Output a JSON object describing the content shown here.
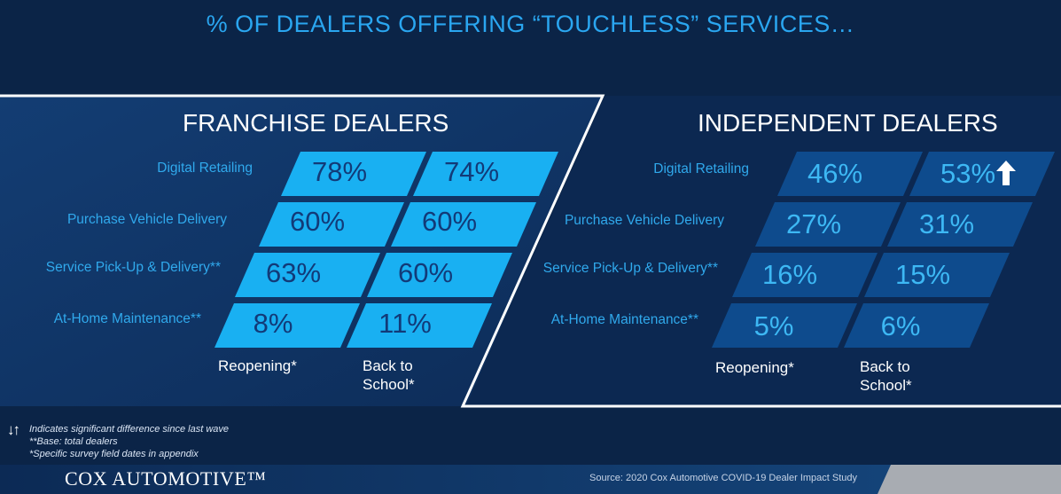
{
  "title": "% OF DEALERS OFFERING “TOUCHLESS” SERVICES…",
  "chart_data": [
    {
      "type": "table",
      "title": "FRANCHISE DEALERS",
      "columns": [
        "Reopening*",
        "Back to\nSchool*"
      ],
      "rows": [
        "Digital Retailing",
        "Purchase Vehicle Delivery",
        "Service Pick-Up & Delivery**",
        "At-Home Maintenance**"
      ],
      "values_display": [
        [
          "78%",
          "74%"
        ],
        [
          "60%",
          "60%"
        ],
        [
          "63%",
          "60%"
        ],
        [
          "8%",
          "11%"
        ]
      ],
      "values": [
        [
          78,
          74
        ],
        [
          60,
          60
        ],
        [
          63,
          60
        ],
        [
          8,
          11
        ]
      ]
    },
    {
      "type": "table",
      "title": "INDEPENDENT DEALERS",
      "columns": [
        "Reopening*",
        "Back to\nSchool*"
      ],
      "rows": [
        "Digital Retailing",
        "Purchase Vehicle Delivery",
        "Service Pick-Up & Delivery**",
        "At-Home Maintenance**"
      ],
      "values_display": [
        [
          "46%",
          "53%"
        ],
        [
          "27%",
          "31%"
        ],
        [
          "16%",
          "15%"
        ],
        [
          "5%",
          "6%"
        ]
      ],
      "values": [
        [
          46,
          53
        ],
        [
          27,
          31
        ],
        [
          16,
          15
        ],
        [
          5,
          6
        ]
      ],
      "significant_increase": [
        [
          false,
          true
        ],
        [
          false,
          false
        ],
        [
          false,
          false
        ],
        [
          false,
          false
        ]
      ]
    }
  ],
  "footnotes": {
    "arrows_symbol": "↓↑",
    "line1": "Indicates significant difference since last wave",
    "line2": "**Base: total dealers",
    "line3": "*Specific survey field dates in appendix"
  },
  "brand": "COX AUTOMOTIVE™",
  "source": "Source: 2020 Cox Automotive COVID-19 Dealer Impact Study",
  "colors": {
    "background": "#0b2447",
    "panel": "#0f3566",
    "franchise_cell": "#19b0f2",
    "independent_cell": "#0e4b8d",
    "title": "#2aa6f0",
    "label": "#30a9ec"
  }
}
